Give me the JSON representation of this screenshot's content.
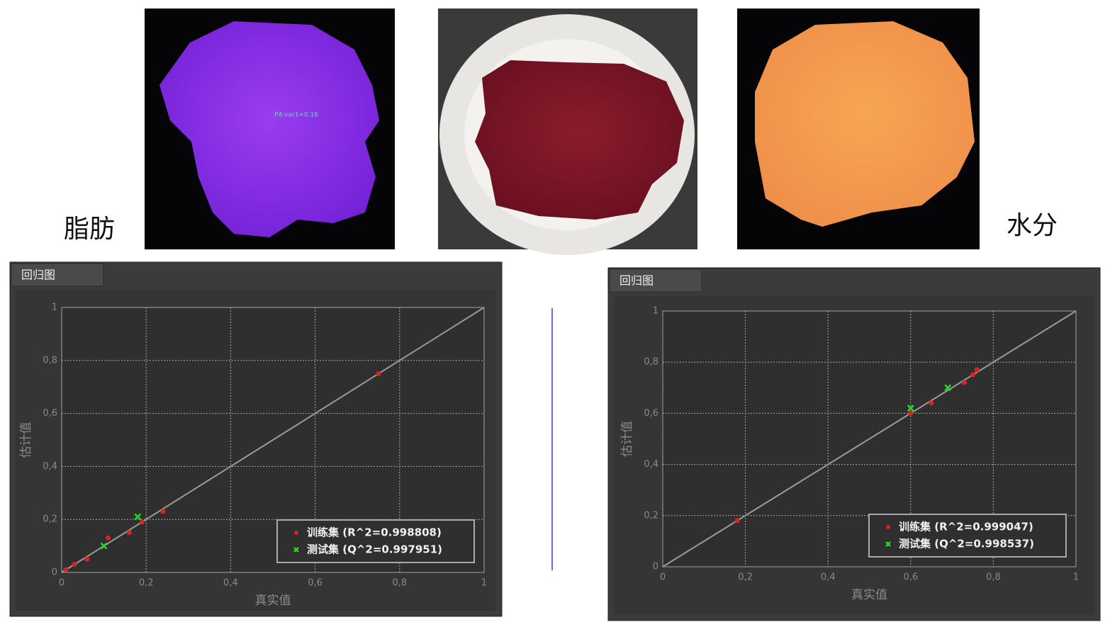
{
  "image_labels": [
    "脂肪",
    "水分"
  ],
  "image_annotation": "P4:var1=0.16",
  "chart_data": [
    {
      "type": "scatter",
      "tab_title": "回归图",
      "xlabel": "真实值",
      "ylabel": "估计值",
      "xlim": [
        0,
        1
      ],
      "ylim": [
        0,
        1
      ],
      "xticks": [
        0,
        {
          "value": 0.2,
          "label": "0,2"
        },
        {
          "value": 0.4,
          "label": "0,4"
        },
        {
          "value": 0.6,
          "label": "0,6"
        },
        {
          "value": 0.8,
          "label": "0,8"
        },
        1
      ],
      "yticks": [
        0,
        {
          "value": 0.2,
          "label": "0,2"
        },
        {
          "value": 0.4,
          "label": "0,4"
        },
        {
          "value": 0.6,
          "label": "0,6"
        },
        {
          "value": 0.8,
          "label": "0,8"
        },
        1
      ],
      "grid": true,
      "legend": "lower right",
      "series": [
        {
          "name": "训练集 (R^2=0.998808)",
          "color": "#e02020",
          "marker": "o",
          "x": [
            0.01,
            0.03,
            0.06,
            0.11,
            0.16,
            0.19,
            0.24,
            0.75
          ],
          "values": [
            0.01,
            0.03,
            0.05,
            0.13,
            0.15,
            0.19,
            0.23,
            0.75
          ]
        },
        {
          "name": "测试集 (Q^2=0.997951)",
          "color": "#22dd22",
          "marker": "x",
          "x": [
            0.1,
            0.18
          ],
          "values": [
            0.1,
            0.21
          ]
        }
      ]
    },
    {
      "type": "scatter",
      "tab_title": "回归图",
      "xlabel": "真实值",
      "ylabel": "估计值",
      "xlim": [
        0,
        1
      ],
      "ylim": [
        0,
        1
      ],
      "xticks": [
        0,
        {
          "value": 0.2,
          "label": "0,2"
        },
        {
          "value": 0.4,
          "label": "0,4"
        },
        {
          "value": 0.6,
          "label": "0,6"
        },
        {
          "value": 0.8,
          "label": "0,8"
        },
        1
      ],
      "yticks": [
        0,
        {
          "value": 0.2,
          "label": "0,2"
        },
        {
          "value": 0.4,
          "label": "0,4"
        },
        {
          "value": 0.6,
          "label": "0,6"
        },
        {
          "value": 0.8,
          "label": "0,8"
        },
        1
      ],
      "grid": true,
      "legend": "lower right",
      "series": [
        {
          "name": "训练集 (R^2=0.999047)",
          "color": "#e02020",
          "marker": "o",
          "x": [
            0.18,
            0.6,
            0.65,
            0.73,
            0.75,
            0.76
          ],
          "values": [
            0.18,
            0.6,
            0.64,
            0.72,
            0.75,
            0.77
          ]
        },
        {
          "name": "测试集 (Q^2=0.998537)",
          "color": "#22dd22",
          "marker": "x",
          "x": [
            0.6,
            0.69
          ],
          "values": [
            0.62,
            0.7
          ]
        }
      ]
    }
  ]
}
